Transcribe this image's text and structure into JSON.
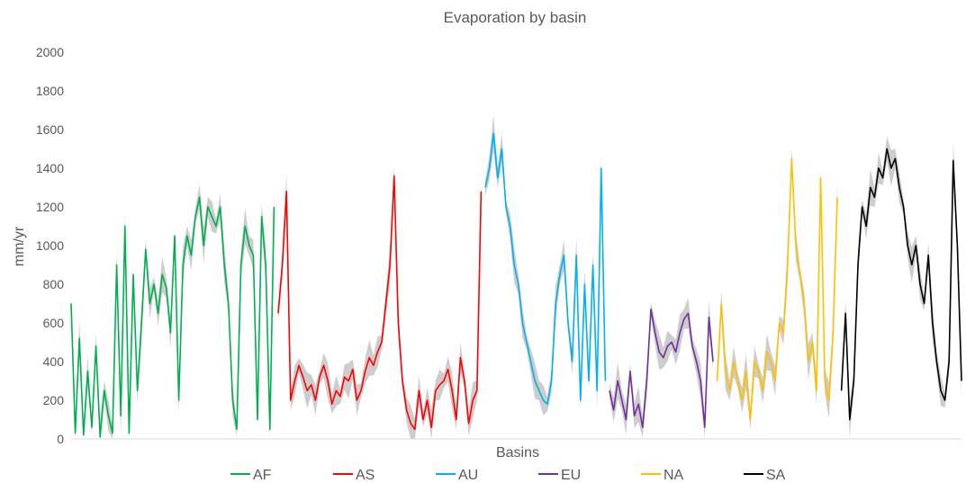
{
  "chart_data": {
    "type": "line",
    "title": "Evaporation by basin",
    "xlabel": "Basins",
    "ylabel": "mm/yr",
    "ylim": [
      0,
      2000
    ],
    "yticks": [
      0,
      200,
      400,
      600,
      800,
      1000,
      1200,
      1400,
      1600,
      1800,
      2000
    ],
    "grid": false,
    "legend_position": "bottom",
    "band_color": "#c8c8c8",
    "series": [
      {
        "name": "AF",
        "color": "#00b050",
        "values": [
          700,
          30,
          520,
          20,
          350,
          60,
          480,
          10,
          250,
          120,
          30,
          900,
          120,
          1100,
          30,
          850,
          250,
          600,
          980,
          700,
          800,
          650,
          850,
          780,
          550,
          1050,
          200,
          900,
          1050,
          950,
          1150,
          1250,
          1000,
          1200,
          1150,
          1100,
          1200,
          900,
          700,
          200,
          50,
          900,
          1100,
          1000,
          950,
          100,
          1150,
          900,
          50,
          1200
        ]
      },
      {
        "name": "AS",
        "color": "#ff0000",
        "values": [
          650,
          900,
          1280,
          200,
          300,
          380,
          320,
          250,
          280,
          200,
          320,
          380,
          300,
          180,
          250,
          220,
          320,
          300,
          360,
          200,
          250,
          350,
          420,
          380,
          450,
          500,
          700,
          900,
          1360,
          600,
          300,
          150,
          80,
          50,
          250,
          100,
          200,
          60,
          250,
          280,
          300,
          360,
          250,
          100,
          420,
          300,
          80,
          200,
          250,
          1280
        ]
      },
      {
        "name": "AU",
        "color": "#00b0f0",
        "values": [
          1300,
          1400,
          1580,
          1350,
          1500,
          1200,
          1100,
          900,
          800,
          600,
          500,
          400,
          300,
          250,
          200,
          180,
          300,
          700,
          850,
          950,
          600,
          400,
          950,
          200,
          800,
          300,
          900,
          250,
          1400,
          300
        ]
      },
      {
        "name": "EU",
        "color": "#7030a0",
        "values": [
          250,
          150,
          300,
          200,
          100,
          350,
          120,
          180,
          60,
          300,
          670,
          550,
          450,
          420,
          480,
          500,
          450,
          550,
          620,
          650,
          480,
          400,
          300,
          60,
          630,
          400
        ]
      },
      {
        "name": "NA",
        "color": "#ffc000",
        "values": [
          300,
          700,
          350,
          250,
          400,
          300,
          200,
          350,
          100,
          400,
          350,
          250,
          450,
          400,
          300,
          600,
          550,
          900,
          1450,
          1000,
          850,
          700,
          400,
          500,
          250,
          1350,
          300,
          200,
          550,
          1250
        ]
      },
      {
        "name": "SA",
        "color": "#000000",
        "values": [
          250,
          650,
          100,
          300,
          900,
          1200,
          1100,
          1300,
          1250,
          1400,
          1350,
          1500,
          1400,
          1450,
          1300,
          1200,
          1000,
          900,
          1000,
          800,
          700,
          950,
          600,
          400,
          250,
          200,
          400,
          1440,
          1000,
          300
        ]
      }
    ]
  }
}
